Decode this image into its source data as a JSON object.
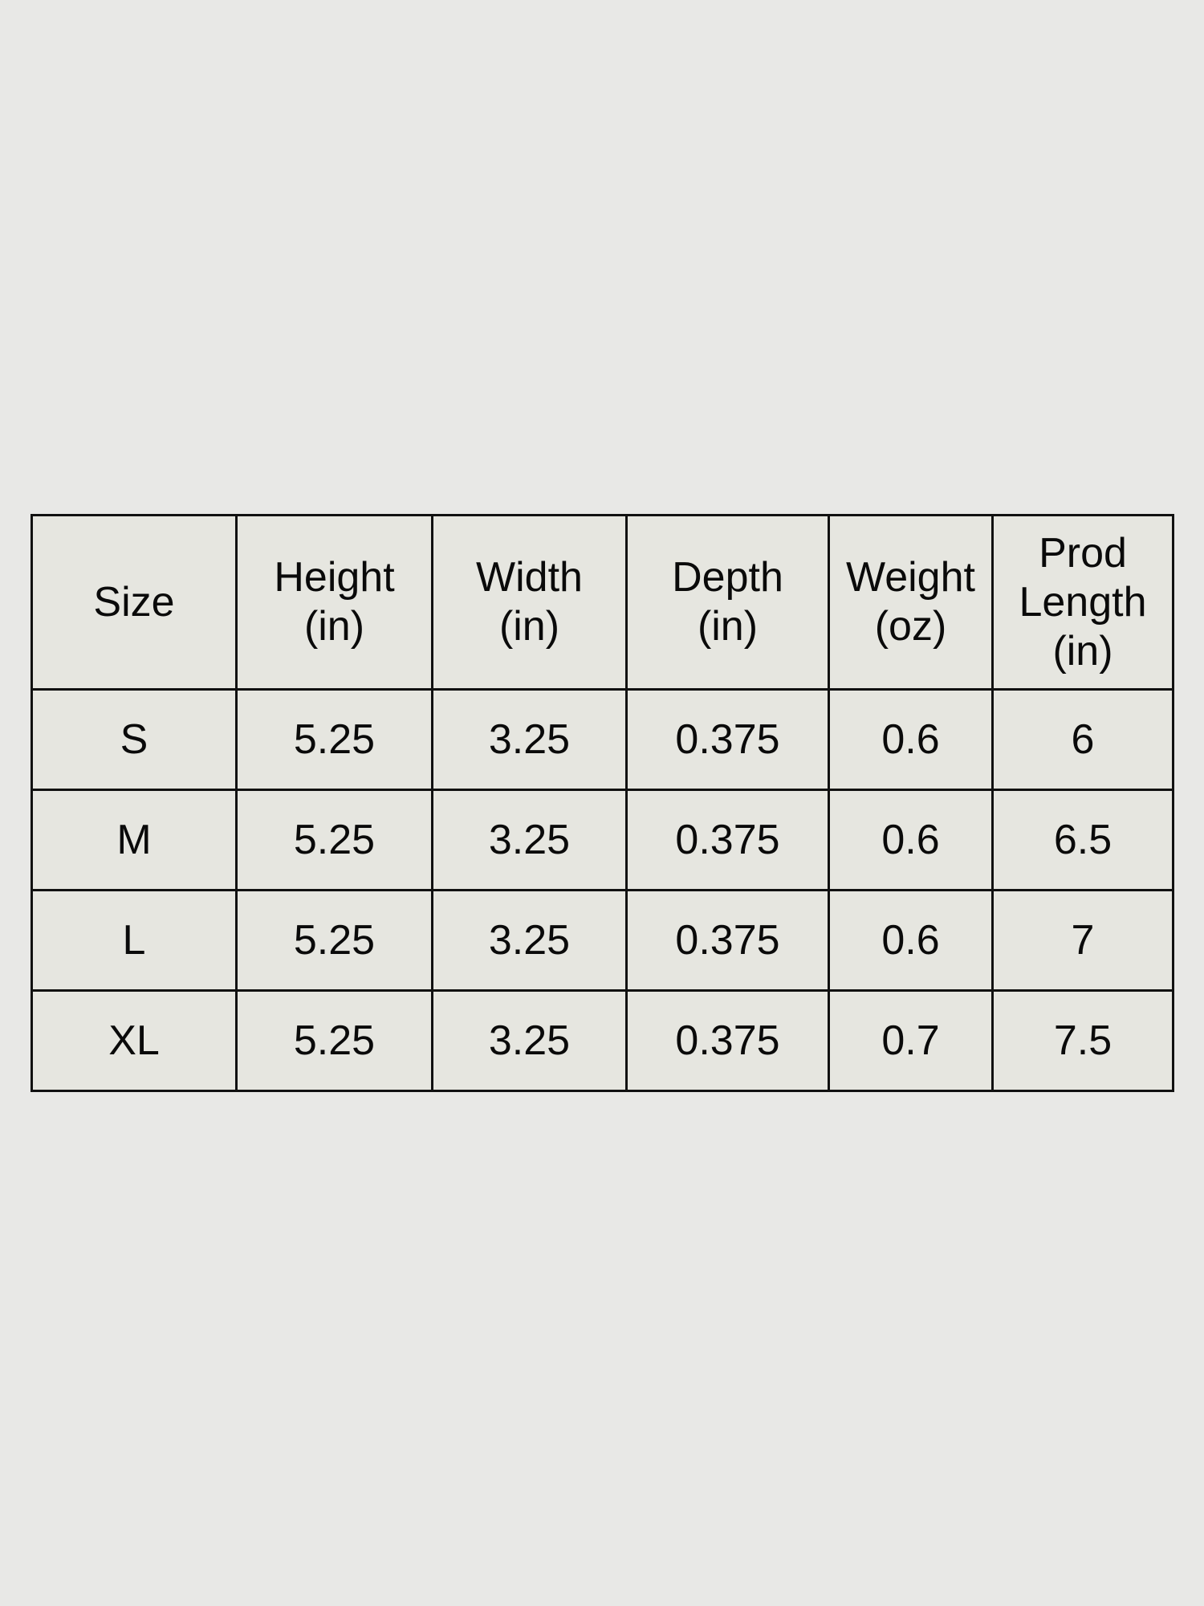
{
  "table": {
    "headers": [
      [
        "Size"
      ],
      [
        "Height",
        "(in)"
      ],
      [
        "Width",
        "(in)"
      ],
      [
        "Depth",
        "(in)"
      ],
      [
        "Weight",
        "(oz)"
      ],
      [
        "Prod",
        "Length",
        "(in)"
      ]
    ],
    "rows": [
      [
        "S",
        "5.25",
        "3.25",
        "0.375",
        "0.6",
        "6"
      ],
      [
        "M",
        "5.25",
        "3.25",
        "0.375",
        "0.6",
        "6.5"
      ],
      [
        "L",
        "5.25",
        "3.25",
        "0.375",
        "0.6",
        "7"
      ],
      [
        "XL",
        "5.25",
        "3.25",
        "0.375",
        "0.7",
        "7.5"
      ]
    ]
  }
}
